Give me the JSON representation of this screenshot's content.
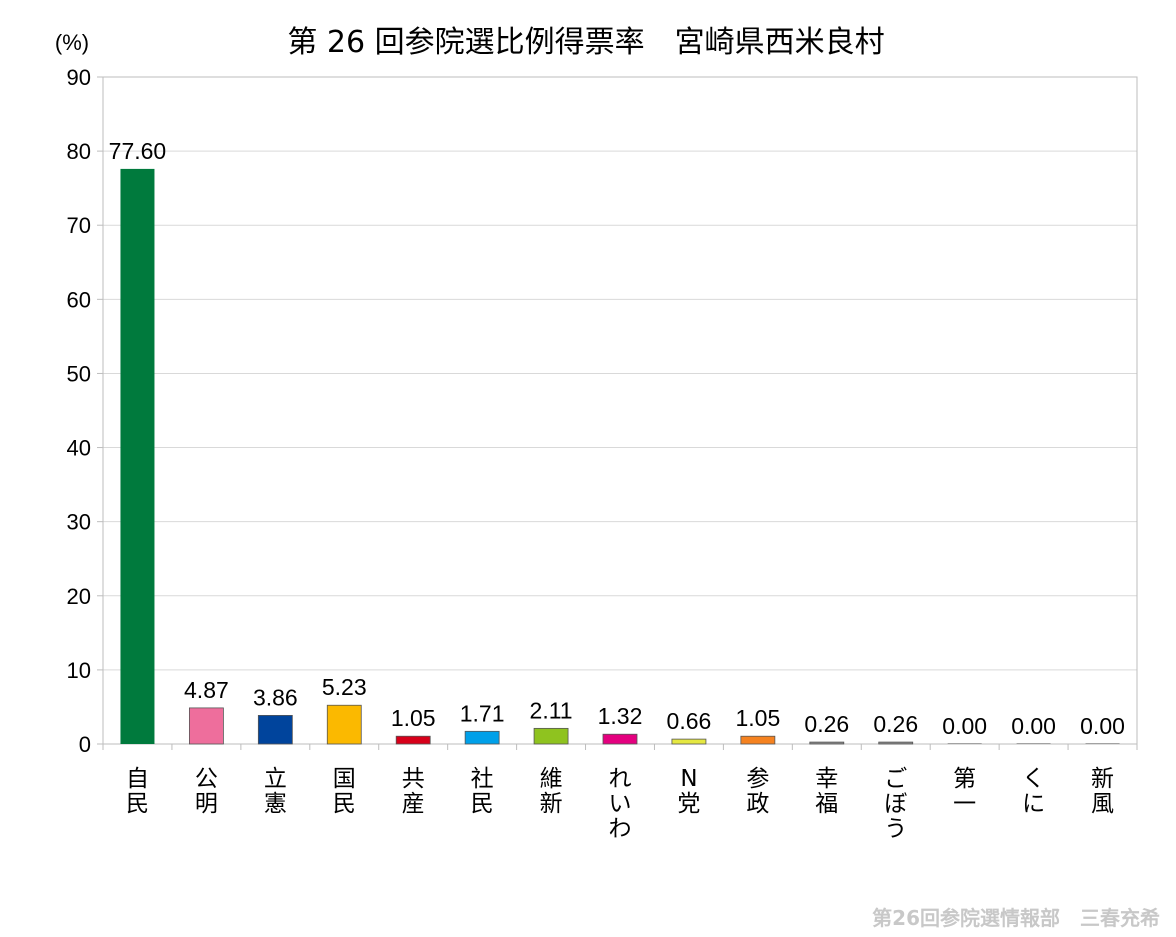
{
  "chart_data": {
    "type": "bar",
    "title": "第 26 回参院選比例得票率　宮崎県西米良村",
    "ylabel": "(%)",
    "ylim": [
      0,
      90
    ],
    "yticks": [
      0,
      10,
      20,
      30,
      40,
      50,
      60,
      70,
      80,
      90
    ],
    "grid": true,
    "categories": [
      "自民",
      "公明",
      "立憲",
      "国民",
      "共産",
      "社民",
      "維新",
      "れいわ",
      "N党",
      "参政",
      "幸福",
      "ごぼう",
      "第一",
      "くに",
      "新風"
    ],
    "values": [
      77.6,
      4.87,
      3.86,
      5.23,
      1.05,
      1.71,
      2.11,
      1.32,
      0.66,
      1.05,
      0.26,
      0.26,
      0.0,
      0.0,
      0.0
    ],
    "value_labels": [
      "77.60",
      "4.87",
      "3.86",
      "5.23",
      "1.05",
      "1.71",
      "2.11",
      "1.32",
      "0.66",
      "1.05",
      "0.26",
      "0.26",
      "0.00",
      "0.00",
      "0.00"
    ],
    "colors": [
      "#007a3d",
      "#ee6e9c",
      "#00449c",
      "#fbb900",
      "#d7001a",
      "#00a0e9",
      "#8fc31f",
      "#e4007f",
      "#e5e841",
      "#f58220",
      "#8c8c8c",
      "#8c8c8c",
      "#8c8c8c",
      "#8c8c8c",
      "#8c8c8c"
    ]
  },
  "footer": "第26回参院選情報部　三春充希"
}
